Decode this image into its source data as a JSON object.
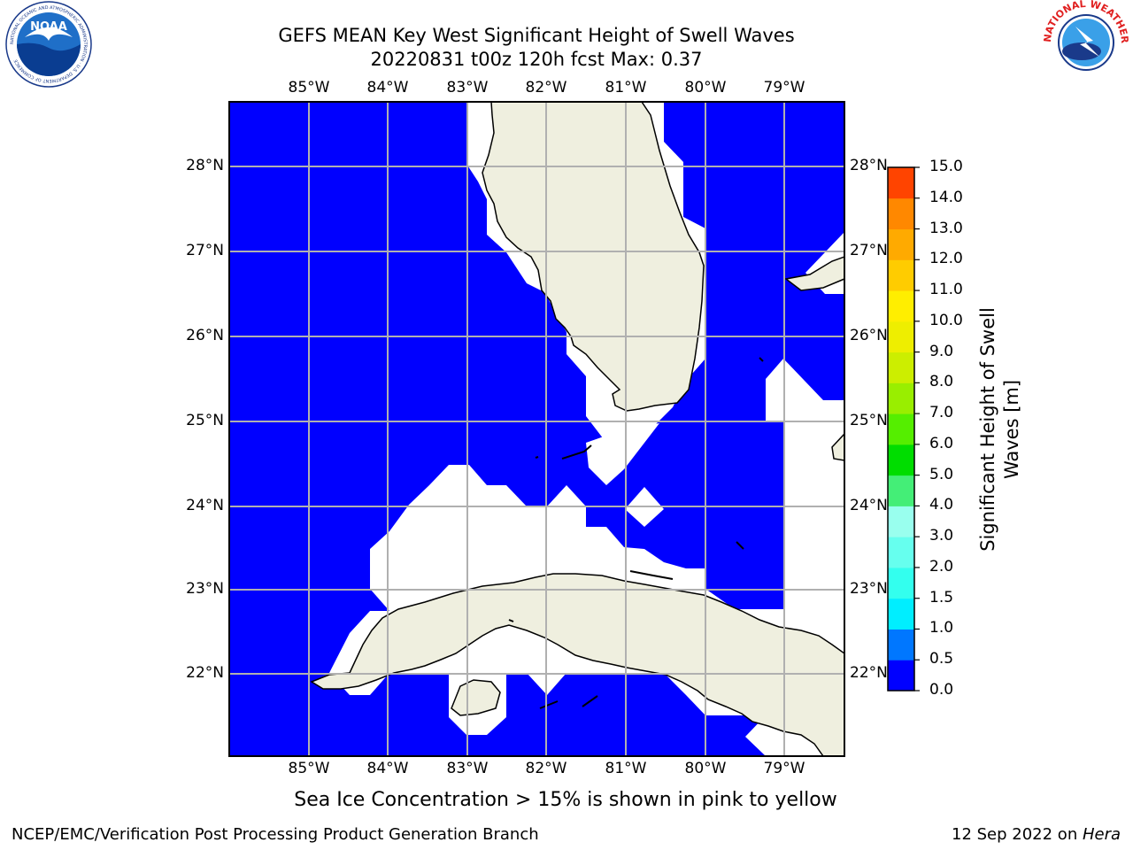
{
  "header": {
    "title_line1": "GEFS MEAN Key West Significant Height of Swell Waves",
    "title_line2": "20220831 t00z 120h fcst   Max: 0.37"
  },
  "logos": {
    "left": "NOAA",
    "left_ring": "NATIONAL OCEANIC AND ATMOSPHERIC ADMINISTRATION · U.S. DEPARTMENT OF COMMERCE",
    "right_ring": "NATIONAL WEATHER SERVICE"
  },
  "map": {
    "lon_ticks": [
      "85°W",
      "84°W",
      "83°W",
      "82°W",
      "81°W",
      "80°W",
      "79°W"
    ],
    "lat_ticks": [
      "28°N",
      "27°N",
      "26°N",
      "25°N",
      "24°N",
      "23°N",
      "22°N"
    ],
    "ocean_color": "#0000ff",
    "land_color": "#efefdf",
    "missing_color": "#ffffff"
  },
  "colorbar": {
    "label_line1": "Significant Height of Swell",
    "label_line2": "Waves [m]",
    "ticks": [
      "0.0",
      "0.5",
      "1.0",
      "1.5",
      "2.0",
      "3.0",
      "4.0",
      "5.0",
      "6.0",
      "7.0",
      "8.0",
      "9.0",
      "10.0",
      "11.0",
      "12.0",
      "13.0",
      "14.0",
      "15.0"
    ],
    "colors": [
      "#0000ff",
      "#0077ff",
      "#00eeff",
      "#33ffee",
      "#66ffee",
      "#99ffee",
      "#44ee77",
      "#00dd00",
      "#55ee00",
      "#99ee00",
      "#ccee00",
      "#eeee00",
      "#ffee00",
      "#ffcc00",
      "#ffaa00",
      "#ff8800",
      "#ff4400",
      "#ff0000"
    ]
  },
  "note": "Sea Ice Concentration > 15% is shown in pink to yellow",
  "footer": {
    "left": "NCEP/EMC/Verification Post Processing Product Generation Branch",
    "right_date": "12 Sep 2022 on ",
    "right_host": "Hera"
  }
}
